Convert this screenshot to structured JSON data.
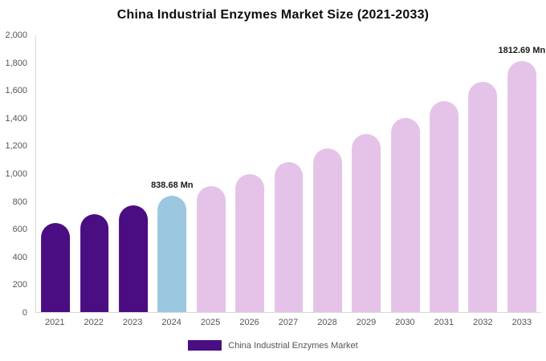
{
  "chart_data": {
    "type": "bar",
    "title": "China Industrial Enzymes Market Size (2021-2033)",
    "xlabel": "",
    "ylabel": "",
    "ylim": [
      0,
      2000
    ],
    "grid": false,
    "legend_position": "bottom",
    "categories": [
      "2021",
      "2022",
      "2023",
      "2024",
      "2025",
      "2026",
      "2027",
      "2028",
      "2029",
      "2030",
      "2031",
      "2032",
      "2033"
    ],
    "values": [
      645,
      707,
      770,
      838.68,
      913,
      995,
      1084,
      1181,
      1287,
      1402,
      1527,
      1664,
      1812.69
    ],
    "y_ticks": [
      "0",
      "200",
      "400",
      "600",
      "800",
      "1,000",
      "1,200",
      "1,400",
      "1,600",
      "1,800",
      "2,000"
    ],
    "point_labels": {
      "2024": "838.68 Mn",
      "2033": "1812.69 Mn"
    },
    "bar_colors": [
      "#4a0d82",
      "#4a0d82",
      "#4a0d82",
      "#9cc7e0",
      "#e5c3e8",
      "#e5c3e8",
      "#e5c3e8",
      "#e5c3e8",
      "#e5c3e8",
      "#e5c3e8",
      "#e5c3e8",
      "#e5c3e8",
      "#e5c3e8"
    ],
    "colors": {
      "historical": "#4a0d82",
      "base_year": "#9cc7e0",
      "forecast": "#e5c3e8",
      "axis_text": "#555555",
      "label_text": "#1a1a1a"
    },
    "legend": [
      {
        "label": "China Industrial Enzymes Market",
        "color": "#4a0d82"
      }
    ]
  }
}
